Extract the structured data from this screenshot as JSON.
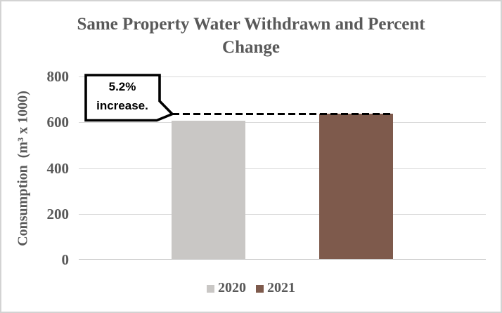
{
  "frame": {
    "background": "#ffffff",
    "border_color": "#d3d3d3"
  },
  "title": {
    "line1": "Same Property Water Withdrawn and Percent",
    "line2": "Change",
    "color": "#595959"
  },
  "callout": {
    "line1": "5.2%",
    "line2": "increase."
  },
  "chart_data": {
    "type": "bar",
    "title": "Same Property Water Withdrawn and Percent Change",
    "xlabel": "",
    "ylabel": "Consumption  (m³ x 1000)",
    "categories": [
      "2020",
      "2021"
    ],
    "series": [
      {
        "name": "2020",
        "values": [
          605
        ],
        "color": "#c9c7c5"
      },
      {
        "name": "2021",
        "values": [
          636
        ],
        "color": "#7e5a4c"
      }
    ],
    "ylim": [
      0,
      800
    ],
    "yticks": [
      0,
      200,
      400,
      600,
      800
    ],
    "grid": "horizontal",
    "gridline_color": "#d9d9d9",
    "text_color": "#595959",
    "legend_position": "bottom",
    "annotation": {
      "text": "5.2% increase.",
      "marks_series": "2021",
      "value_marked": 636,
      "style": "callout box with dashed leader line at 2021 bar top"
    }
  }
}
